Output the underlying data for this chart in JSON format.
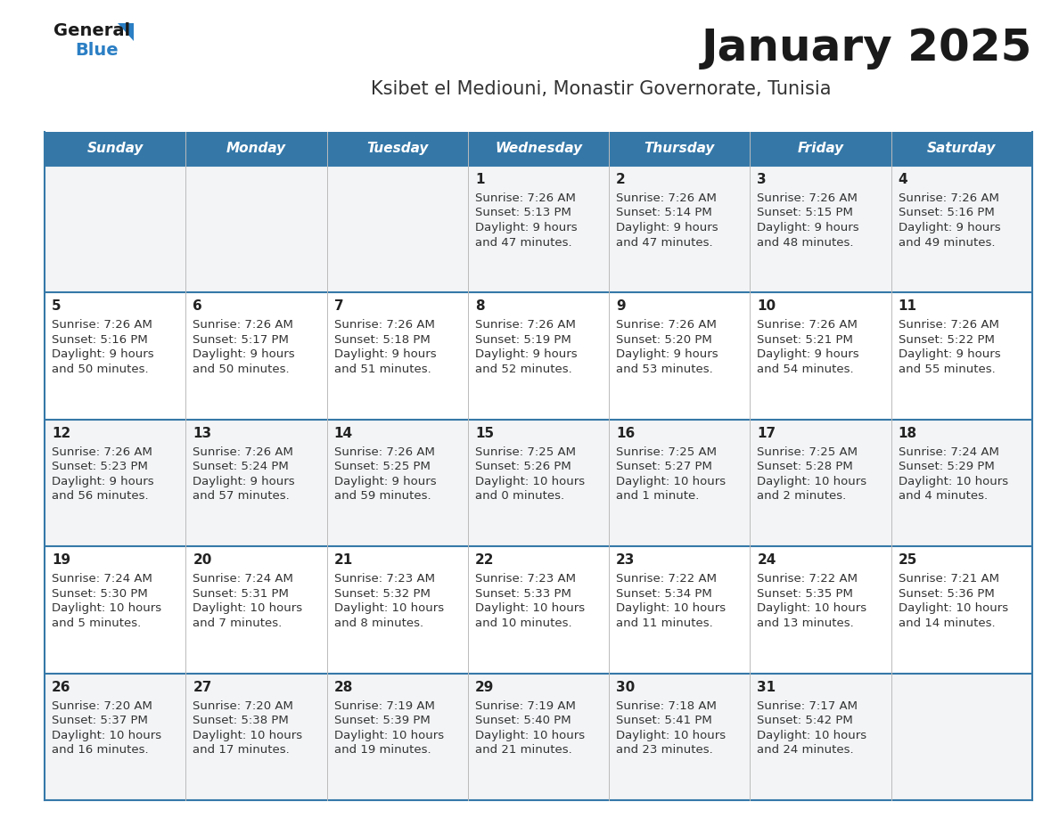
{
  "title": "January 2025",
  "subtitle": "Ksibet el Mediouni, Monastir Governorate, Tunisia",
  "days_of_week": [
    "Sunday",
    "Monday",
    "Tuesday",
    "Wednesday",
    "Thursday",
    "Friday",
    "Saturday"
  ],
  "header_bg": "#3578a8",
  "header_text": "#FFFFFF",
  "row_bg_odd": "#F2F4F6",
  "row_bg_even": "#FFFFFF",
  "divider_color": "#3578a8",
  "day_number_color": "#222222",
  "text_color": "#333333",
  "title_color": "#1a1a1a",
  "subtitle_color": "#333333",
  "logo_general_color": "#1a1a1a",
  "logo_blue_color": "#2B7FC4",
  "calendar_data": [
    [
      null,
      null,
      null,
      {
        "day": 1,
        "sunrise": "7:26 AM",
        "sunset": "5:13 PM",
        "daylight_h": "9 hours",
        "daylight_m": "and 47 minutes."
      },
      {
        "day": 2,
        "sunrise": "7:26 AM",
        "sunset": "5:14 PM",
        "daylight_h": "9 hours",
        "daylight_m": "and 47 minutes."
      },
      {
        "day": 3,
        "sunrise": "7:26 AM",
        "sunset": "5:15 PM",
        "daylight_h": "9 hours",
        "daylight_m": "and 48 minutes."
      },
      {
        "day": 4,
        "sunrise": "7:26 AM",
        "sunset": "5:16 PM",
        "daylight_h": "9 hours",
        "daylight_m": "and 49 minutes."
      }
    ],
    [
      {
        "day": 5,
        "sunrise": "7:26 AM",
        "sunset": "5:16 PM",
        "daylight_h": "9 hours",
        "daylight_m": "and 50 minutes."
      },
      {
        "day": 6,
        "sunrise": "7:26 AM",
        "sunset": "5:17 PM",
        "daylight_h": "9 hours",
        "daylight_m": "and 50 minutes."
      },
      {
        "day": 7,
        "sunrise": "7:26 AM",
        "sunset": "5:18 PM",
        "daylight_h": "9 hours",
        "daylight_m": "and 51 minutes."
      },
      {
        "day": 8,
        "sunrise": "7:26 AM",
        "sunset": "5:19 PM",
        "daylight_h": "9 hours",
        "daylight_m": "and 52 minutes."
      },
      {
        "day": 9,
        "sunrise": "7:26 AM",
        "sunset": "5:20 PM",
        "daylight_h": "9 hours",
        "daylight_m": "and 53 minutes."
      },
      {
        "day": 10,
        "sunrise": "7:26 AM",
        "sunset": "5:21 PM",
        "daylight_h": "9 hours",
        "daylight_m": "and 54 minutes."
      },
      {
        "day": 11,
        "sunrise": "7:26 AM",
        "sunset": "5:22 PM",
        "daylight_h": "9 hours",
        "daylight_m": "and 55 minutes."
      }
    ],
    [
      {
        "day": 12,
        "sunrise": "7:26 AM",
        "sunset": "5:23 PM",
        "daylight_h": "9 hours",
        "daylight_m": "and 56 minutes."
      },
      {
        "day": 13,
        "sunrise": "7:26 AM",
        "sunset": "5:24 PM",
        "daylight_h": "9 hours",
        "daylight_m": "and 57 minutes."
      },
      {
        "day": 14,
        "sunrise": "7:26 AM",
        "sunset": "5:25 PM",
        "daylight_h": "9 hours",
        "daylight_m": "and 59 minutes."
      },
      {
        "day": 15,
        "sunrise": "7:25 AM",
        "sunset": "5:26 PM",
        "daylight_h": "10 hours",
        "daylight_m": "and 0 minutes."
      },
      {
        "day": 16,
        "sunrise": "7:25 AM",
        "sunset": "5:27 PM",
        "daylight_h": "10 hours",
        "daylight_m": "and 1 minute."
      },
      {
        "day": 17,
        "sunrise": "7:25 AM",
        "sunset": "5:28 PM",
        "daylight_h": "10 hours",
        "daylight_m": "and 2 minutes."
      },
      {
        "day": 18,
        "sunrise": "7:24 AM",
        "sunset": "5:29 PM",
        "daylight_h": "10 hours",
        "daylight_m": "and 4 minutes."
      }
    ],
    [
      {
        "day": 19,
        "sunrise": "7:24 AM",
        "sunset": "5:30 PM",
        "daylight_h": "10 hours",
        "daylight_m": "and 5 minutes."
      },
      {
        "day": 20,
        "sunrise": "7:24 AM",
        "sunset": "5:31 PM",
        "daylight_h": "10 hours",
        "daylight_m": "and 7 minutes."
      },
      {
        "day": 21,
        "sunrise": "7:23 AM",
        "sunset": "5:32 PM",
        "daylight_h": "10 hours",
        "daylight_m": "and 8 minutes."
      },
      {
        "day": 22,
        "sunrise": "7:23 AM",
        "sunset": "5:33 PM",
        "daylight_h": "10 hours",
        "daylight_m": "and 10 minutes."
      },
      {
        "day": 23,
        "sunrise": "7:22 AM",
        "sunset": "5:34 PM",
        "daylight_h": "10 hours",
        "daylight_m": "and 11 minutes."
      },
      {
        "day": 24,
        "sunrise": "7:22 AM",
        "sunset": "5:35 PM",
        "daylight_h": "10 hours",
        "daylight_m": "and 13 minutes."
      },
      {
        "day": 25,
        "sunrise": "7:21 AM",
        "sunset": "5:36 PM",
        "daylight_h": "10 hours",
        "daylight_m": "and 14 minutes."
      }
    ],
    [
      {
        "day": 26,
        "sunrise": "7:20 AM",
        "sunset": "5:37 PM",
        "daylight_h": "10 hours",
        "daylight_m": "and 16 minutes."
      },
      {
        "day": 27,
        "sunrise": "7:20 AM",
        "sunset": "5:38 PM",
        "daylight_h": "10 hours",
        "daylight_m": "and 17 minutes."
      },
      {
        "day": 28,
        "sunrise": "7:19 AM",
        "sunset": "5:39 PM",
        "daylight_h": "10 hours",
        "daylight_m": "and 19 minutes."
      },
      {
        "day": 29,
        "sunrise": "7:19 AM",
        "sunset": "5:40 PM",
        "daylight_h": "10 hours",
        "daylight_m": "and 21 minutes."
      },
      {
        "day": 30,
        "sunrise": "7:18 AM",
        "sunset": "5:41 PM",
        "daylight_h": "10 hours",
        "daylight_m": "and 23 minutes."
      },
      {
        "day": 31,
        "sunrise": "7:17 AM",
        "sunset": "5:42 PM",
        "daylight_h": "10 hours",
        "daylight_m": "and 24 minutes."
      },
      null
    ]
  ]
}
